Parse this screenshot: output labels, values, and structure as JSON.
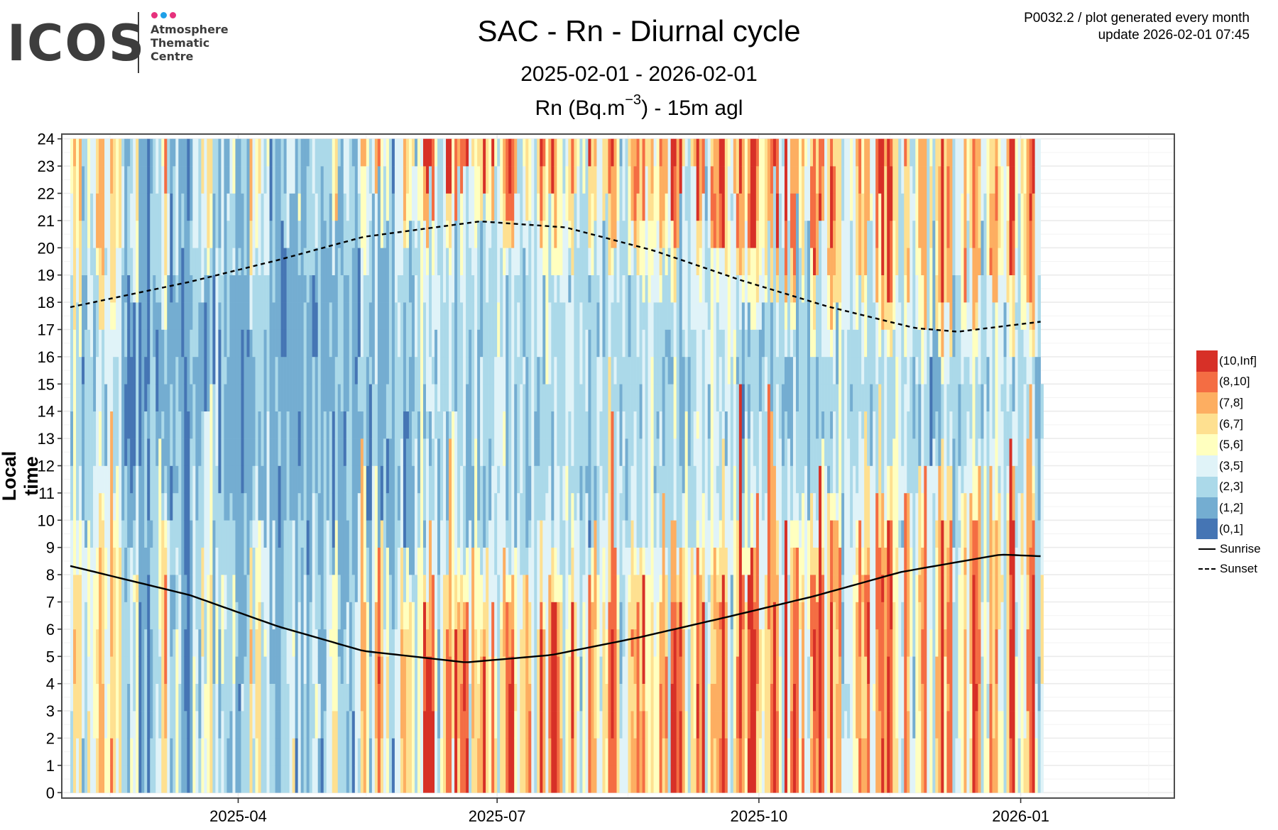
{
  "logo": {
    "wordmark": "ICOS",
    "subtitle": "Atmosphere\nThematic\nCentre",
    "dot_colors": [
      "#e6317c",
      "#1ea0e8",
      "#e6317c"
    ]
  },
  "header": {
    "title": "SAC - Rn - Diurnal cycle",
    "date_range": "2025-02-01 - 2026-02-01",
    "variable_prefix": "Rn (Bq.m",
    "variable_exponent": "−3",
    "variable_suffix": ") - 15m agl",
    "meta_line1": "P0032.2 / plot generated every month",
    "meta_line2": "update  2026-02-01 07:45"
  },
  "chart_data": {
    "type": "heatmap",
    "title": "SAC - Rn - Diurnal cycle",
    "subtitle": "2025-02-01 - 2026-02-01",
    "xlabel": "",
    "ylabel": "Local time",
    "x_start_date": "2025-02-01",
    "x_range_dates": [
      "2025-01-29",
      "2026-02-24"
    ],
    "x_ticks": [
      {
        "date": "2025-04-01",
        "label": "2025-04"
      },
      {
        "date": "2025-07-01",
        "label": "2025-07"
      },
      {
        "date": "2025-10-01",
        "label": "2025-10"
      },
      {
        "date": "2026-01-01",
        "label": "2026-01"
      }
    ],
    "y_ticks": [
      0,
      1,
      2,
      3,
      4,
      5,
      6,
      7,
      8,
      9,
      10,
      11,
      12,
      13,
      14,
      15,
      16,
      17,
      18,
      19,
      20,
      21,
      22,
      23,
      24
    ],
    "ylim": [
      0,
      24
    ],
    "grid": true,
    "categories": [
      {
        "label": "(0,1]",
        "color": "#4575B4"
      },
      {
        "label": "(1,2]",
        "color": "#74ADD1"
      },
      {
        "label": "(2,3]",
        "color": "#ABD9E9"
      },
      {
        "label": "(3,5]",
        "color": "#E0F3F8"
      },
      {
        "label": "(5,6]",
        "color": "#FFFFBF"
      },
      {
        "label": "(6,7]",
        "color": "#FEE090"
      },
      {
        "label": "(7,8]",
        "color": "#FDAE61"
      },
      {
        "label": "(8,10]",
        "color": "#F46D43"
      },
      {
        "label": "(10,Inf]",
        "color": "#D73027"
      }
    ],
    "legend_position": "right",
    "daily_cells_note_encoding": "per-day category index 0-8 for night hours and for midday hours",
    "daily_night_level": "354522433566336545212334111012235631232110133243451323222311222534523312112223413121233212334521222133564226753421336655424388874235774867883655685474256788535566325863788762458532438664355787423356676744544766388786335576823666786325677478864356787328367746336768735866623333565673377868855326632456734256856723346357762336564425883344678324",
    "daily_day_level": "232311221233223222111002111121011211111011121111221212111111111222121211111111111111111211111111111111221112111121222111122322222222232222222232222222323222122222322223223222323222221222322322222222222223322222223222322233232232222323221212222222223222222222222212222232222322222222222222222222221212221222222222222222222222222222222222222212",
    "lines": [
      {
        "name": "Sunrise",
        "style": "solid",
        "points": [
          [
            "2025-02-01",
            8.32
          ],
          [
            "2025-03-15",
            7.25
          ],
          [
            "2025-04-15",
            6.1
          ],
          [
            "2025-05-15",
            5.2
          ],
          [
            "2025-06-20",
            4.78
          ],
          [
            "2025-07-20",
            5.05
          ],
          [
            "2025-08-20",
            5.7
          ],
          [
            "2025-09-20",
            6.45
          ],
          [
            "2025-10-20",
            7.2
          ],
          [
            "2025-11-20",
            8.1
          ],
          [
            "2025-12-25",
            8.74
          ],
          [
            "2026-01-17",
            8.64
          ]
        ]
      },
      {
        "name": "Sunset",
        "style": "dashed",
        "points": [
          [
            "2025-02-01",
            17.82
          ],
          [
            "2025-03-15",
            18.75
          ],
          [
            "2025-04-15",
            19.55
          ],
          [
            "2025-05-15",
            20.4
          ],
          [
            "2025-06-25",
            20.97
          ],
          [
            "2025-07-25",
            20.75
          ],
          [
            "2025-08-25",
            19.9
          ],
          [
            "2025-09-25",
            18.8
          ],
          [
            "2025-10-25",
            17.85
          ],
          [
            "2025-11-25",
            17.05
          ],
          [
            "2025-12-10",
            16.92
          ],
          [
            "2026-01-17",
            17.4
          ]
        ]
      }
    ]
  },
  "legend": {
    "sunrise_label": "Sunrise",
    "sunset_label": "Sunset"
  }
}
